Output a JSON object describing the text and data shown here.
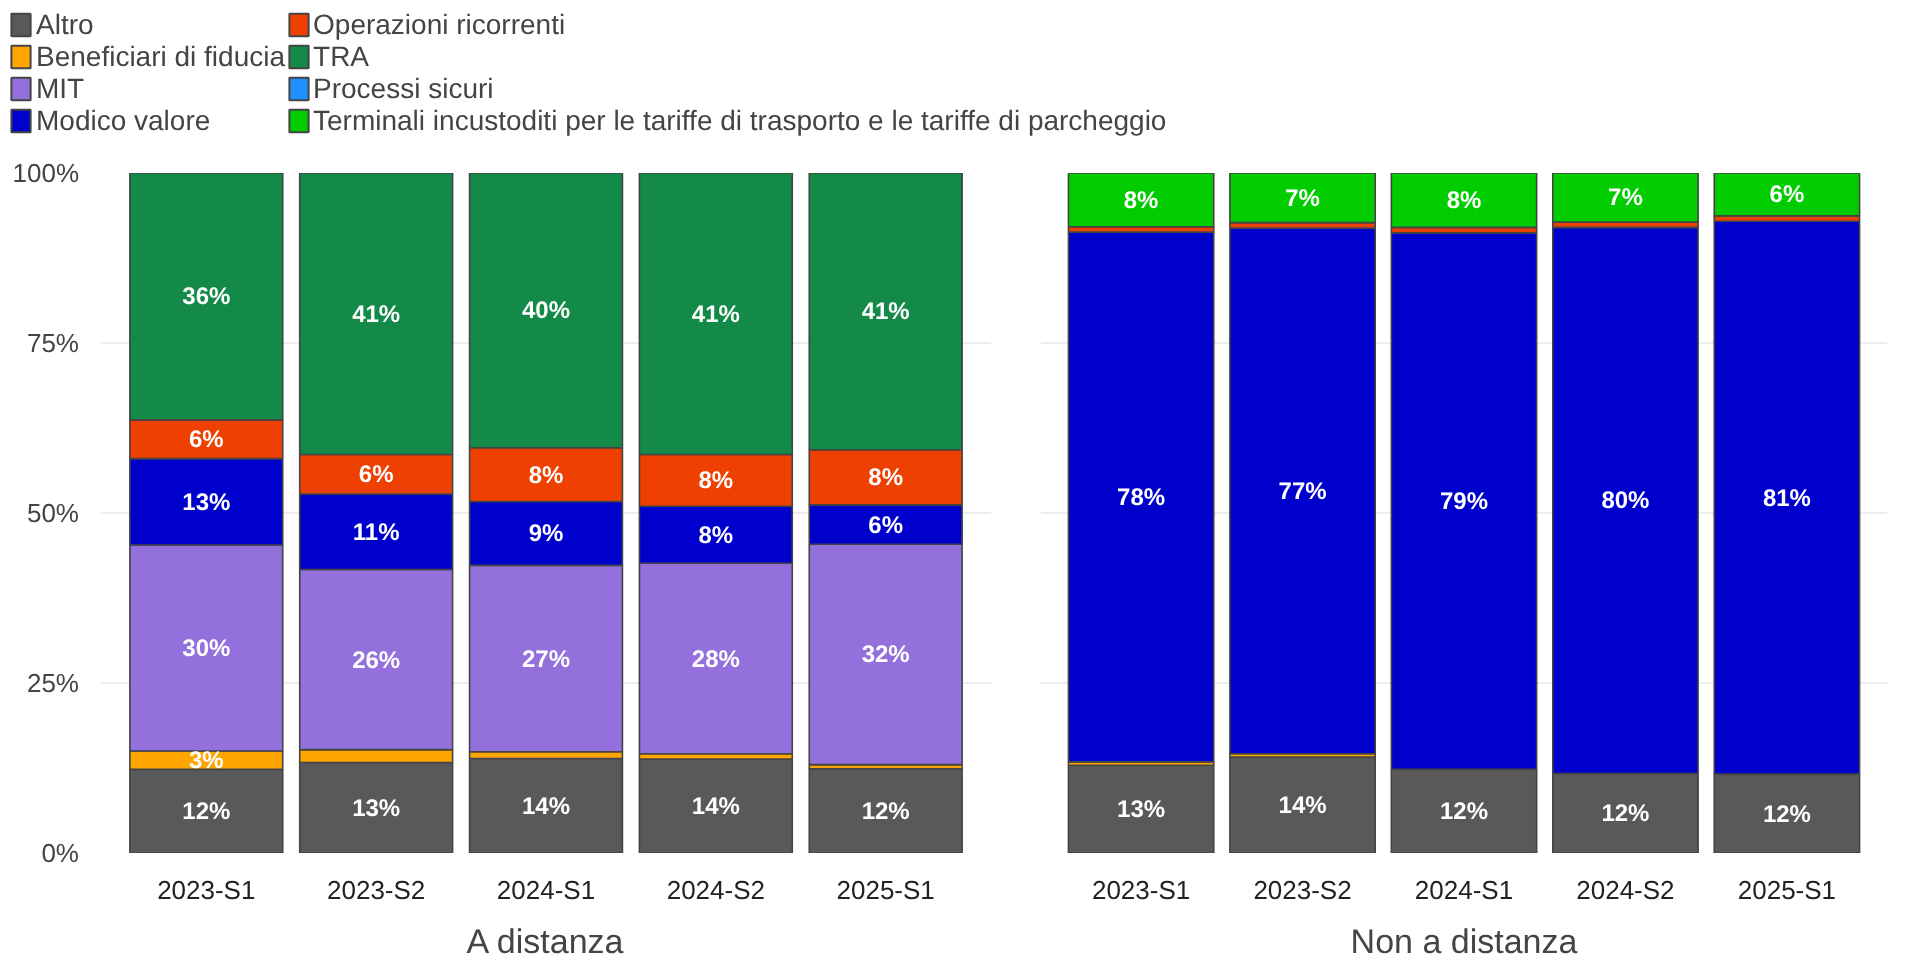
{
  "chart_data": [
    {
      "type": "bar",
      "stacked": true,
      "xlabel": "A distanza",
      "categories": [
        "2023-S1",
        "2023-S2",
        "2024-S1",
        "2024-S2",
        "2025-S1"
      ],
      "ylim": [
        0,
        100
      ],
      "yticks": [
        {
          "value": 0,
          "label": "0%"
        },
        {
          "value": 25,
          "label": "25%"
        },
        {
          "value": 50,
          "label": "50%"
        },
        {
          "value": 75,
          "label": "75%"
        },
        {
          "value": 100,
          "label": "100%"
        }
      ],
      "grid": true,
      "legend": "top",
      "series": [
        {
          "name": "Altro",
          "color": "#595959",
          "values": [
            12.3,
            13.3,
            13.9,
            13.8,
            12.4
          ],
          "value_labels": [
            "12%",
            "13%",
            "14%",
            "14%",
            "12%"
          ]
        },
        {
          "name": "Beneficiari di fiducia",
          "color": "#ffa500",
          "values": [
            2.7,
            1.9,
            1.0,
            0.8,
            0.6
          ],
          "value_labels": [
            "3%",
            null,
            null,
            null,
            null
          ]
        },
        {
          "name": "MIT",
          "color": "#9370db",
          "values": [
            30.3,
            26.5,
            27.4,
            28.0,
            32.4
          ],
          "value_labels": [
            "30%",
            "26%",
            "27%",
            "28%",
            "32%"
          ]
        },
        {
          "name": "Modico valore",
          "color": "#0000cd",
          "values": [
            12.7,
            11.1,
            9.4,
            8.4,
            5.8
          ],
          "value_labels": [
            "13%",
            "11%",
            "9%",
            "8%",
            "6%"
          ]
        },
        {
          "name": "Operazioni ricorrenti",
          "color": "#ee4000",
          "values": [
            5.7,
            5.8,
            7.9,
            7.6,
            8.1
          ],
          "value_labels": [
            "6%",
            "6%",
            "8%",
            "8%",
            "8%"
          ]
        },
        {
          "name": "TRA",
          "color": "#138a48",
          "values": [
            36.3,
            41.4,
            40.4,
            41.4,
            40.7
          ],
          "value_labels": [
            "36%",
            "41%",
            "40%",
            "41%",
            "41%"
          ]
        },
        {
          "name": "Processi sicuri",
          "color": "#1e90ff",
          "values": [
            null,
            null,
            null,
            null,
            null
          ]
        }
      ]
    },
    {
      "type": "bar",
      "stacked": true,
      "xlabel": "Non a distanza",
      "categories": [
        "2023-S1",
        "2023-S2",
        "2024-S1",
        "2024-S2",
        "2025-S1"
      ],
      "ylim": [
        0,
        100
      ],
      "yticks": [
        0,
        25,
        50,
        75,
        100
      ],
      "grid": true,
      "tick_labels": "x",
      "series": [
        {
          "name": "Altro",
          "color": "#595959",
          "values": [
            12.9,
            14.1,
            12.3,
            11.7,
            11.6
          ],
          "value_labels": [
            "13%",
            "14%",
            "12%",
            "12%",
            "12%"
          ]
        },
        {
          "name": "Beneficiari di fiducia",
          "color": "#ffa500",
          "values": [
            0.5,
            0.5,
            null,
            null,
            null
          ]
        },
        {
          "name": "Modico valore",
          "color": "#0000cd",
          "values": [
            77.9,
            77.3,
            78.9,
            80.3,
            81.3
          ],
          "value_labels": [
            "78%",
            "77%",
            "79%",
            "80%",
            "81%"
          ]
        },
        {
          "name": "Operazioni ricorrenti",
          "color": "#ee4000",
          "values": [
            0.8,
            0.8,
            0.8,
            0.8,
            0.8
          ]
        },
        {
          "name": "Terminali incustoditi per le tariffe di trasporto e le tariffe di parcheggio",
          "color": "#00cc00",
          "values": [
            7.9,
            7.3,
            8.0,
            7.2,
            6.3
          ],
          "value_labels": [
            "8%",
            "7%",
            "8%",
            "7%",
            "6%"
          ]
        }
      ]
    }
  ]
}
